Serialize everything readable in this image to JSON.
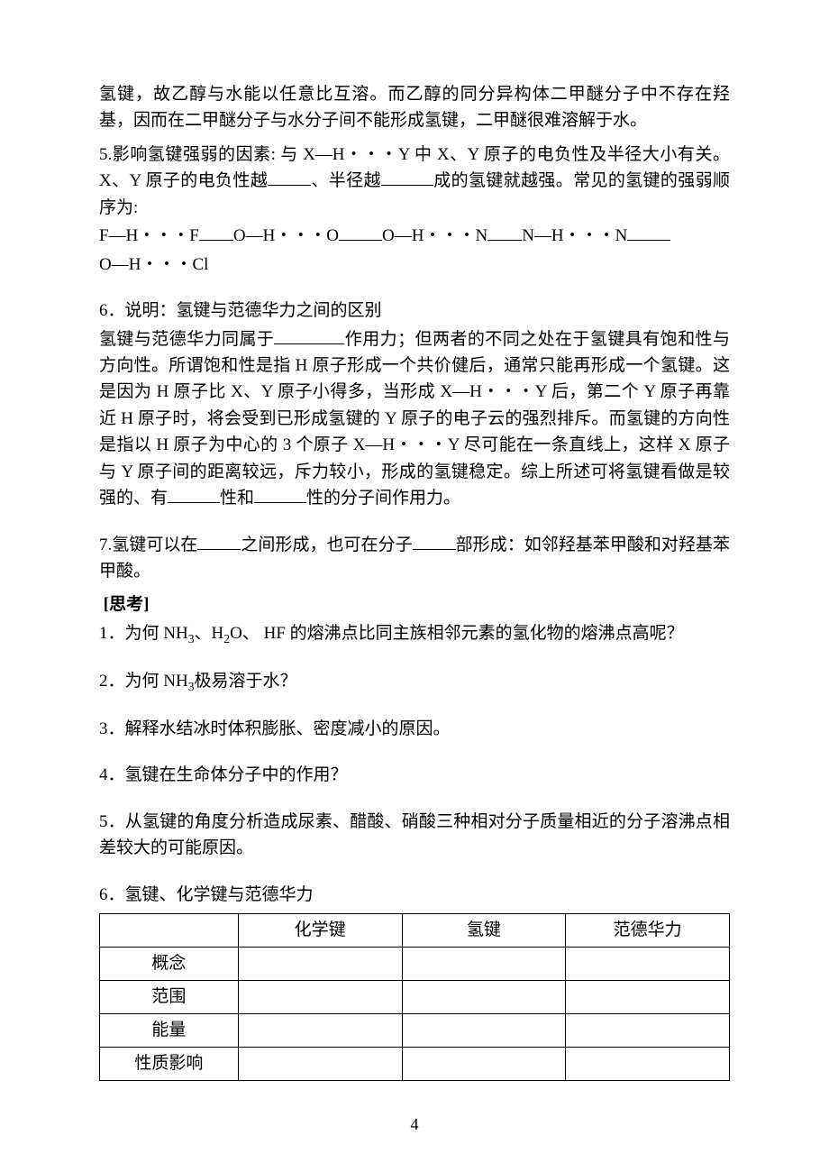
{
  "text": {
    "p1a": "氢键，故乙醇与水能以任意比互溶。而乙醇的同分异构体二甲醚分子中不存在羟基，因而在二甲醚分子与水分子间不能形成氢键，二甲醚很难溶解于水。",
    "p5a": "5.影响氢键强弱的因素: 与 X—H・・・Y 中 X、Y 原子的电负性及半径大小有关。X、Y 原子的电负性越",
    "p5b": "、半径越",
    "p5c": "成的氢键就越强。常见的氢键的强弱顺序为:",
    "seq1": "F—H・・・F",
    "seq2": "O—H・・・O",
    "seq3": "O—H・・・N",
    "seq4": "N—H・・・N",
    "seq5": "O—H・・・Cl",
    "p6a": "6．说明：氢键与范德华力之间的区别",
    "p6b": "氢键与范德华力同属于",
    "p6c": "作用力；但两者的不同之处在于氢键具有饱和性与方向性。所谓饱和性是指 H 原子形成一个共价健后，通常只能再形成一个氢键。这是因为 H 原子比 X、Y 原子小得多，当形成 X—H・・・Y 后，第二个 Y 原子再靠近 H 原子时，将会受到已形成氢键的 Y 原子的电子云的强烈排斥。而氢键的方向性是指以 H 原子为中心的 3 个原子 X—H・・・Y 尽可能在一条直线上，这样 X 原子与 Y 原子间的距离较远，斥力较小，形成的氢键稳定。综上所述可将氢键看做是较强的、有",
    "p6d": "性和",
    "p6e": "性的分子间作用力。",
    "p7a": "7.氢键可以在",
    "p7b": "之间形成，也可在分子",
    "p7c": "部形成：如邻羟基苯甲酸和对羟基苯甲酸。",
    "think_label": "[思考]",
    "q1a": "1．为何 NH",
    "q1b": "、H",
    "q1c": "O、 HF 的熔沸点比同主族相邻元素的氢化物的熔沸点高呢？",
    "q2a": "2．为何 NH",
    "q2b": "极易溶于水？",
    "q3": "3．解释水结冰时体积膨胀、密度减小的原因。",
    "q4": "4．氢键在生命体分子中的作用？",
    "q5": "5．从氢键的角度分析造成尿素、醋酸、硝酸三种相对分子质量相近的分子溶沸点相差较大的可能原因。",
    "q6": "6．氢键、化学键与范德华力",
    "sub3": "3",
    "sub2": "2",
    "page_num": "4"
  },
  "table": {
    "headers": [
      "",
      "化学键",
      "氢键",
      "范德华力"
    ],
    "rows": [
      "概念",
      "范围",
      "能量",
      "性质影响"
    ]
  },
  "style": {
    "page_bg": "#ffffff",
    "text_color": "#000000",
    "font_size_pt": 14,
    "line_height": 1.55,
    "border_color": "#000000"
  }
}
